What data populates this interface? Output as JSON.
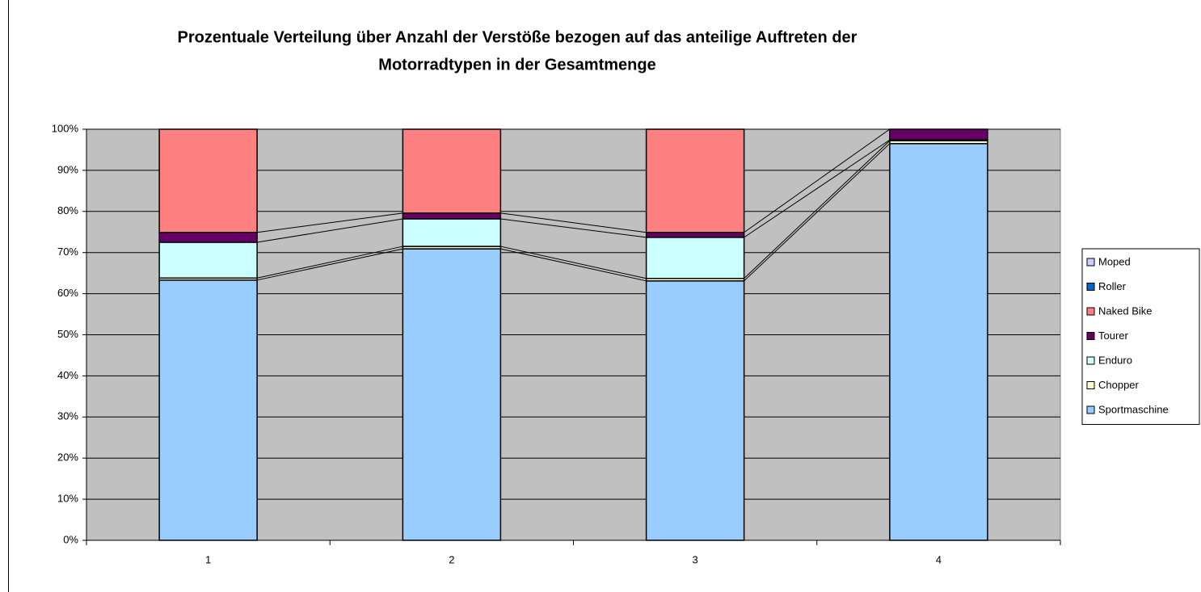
{
  "chart_data": {
    "type": "stacked_bar_percent",
    "title": [
      "Prozentuale Verteilung über Anzahl der Verstöße bezogen auf das anteilige Auftreten der",
      "Motorradtypen in der Gesamtmenge"
    ],
    "categories": [
      "1",
      "2",
      "3",
      "4"
    ],
    "series": [
      {
        "name": "Sportmaschine",
        "color": "#99ccff",
        "values": [
          63.3,
          70.9,
          63.1,
          96.5
        ]
      },
      {
        "name": "Chopper",
        "color": "#ffffcc",
        "values": [
          0.5,
          0.6,
          0.6,
          0.7
        ]
      },
      {
        "name": "Enduro",
        "color": "#ccffff",
        "values": [
          8.7,
          6.7,
          10.0,
          0.2
        ]
      },
      {
        "name": "Tourer",
        "color": "#660066",
        "values": [
          2.4,
          1.4,
          1.2,
          2.6
        ]
      },
      {
        "name": "Naked Bike",
        "color": "#ff8080",
        "values": [
          25.1,
          20.4,
          25.1,
          0
        ]
      },
      {
        "name": "Roller",
        "color": "#0066cc",
        "values": [
          0,
          0,
          0,
          0
        ]
      },
      {
        "name": "Moped",
        "color": "#ccccff",
        "values": [
          0,
          0,
          0,
          0
        ]
      }
    ],
    "ylim": [
      0,
      100
    ],
    "yticks": [
      {
        "value": 0,
        "label": "0%"
      },
      {
        "value": 10,
        "label": "10%"
      },
      {
        "value": 20,
        "label": "20%"
      },
      {
        "value": 30,
        "label": "30%"
      },
      {
        "value": 40,
        "label": "40%"
      },
      {
        "value": 50,
        "label": "50%"
      },
      {
        "value": 60,
        "label": "60%"
      },
      {
        "value": 70,
        "label": "70%"
      },
      {
        "value": 80,
        "label": "80%"
      },
      {
        "value": 90,
        "label": "90%"
      },
      {
        "value": 100,
        "label": "100%"
      }
    ],
    "grid": true,
    "plot_background": "#c0c0c0",
    "legend": "right"
  }
}
